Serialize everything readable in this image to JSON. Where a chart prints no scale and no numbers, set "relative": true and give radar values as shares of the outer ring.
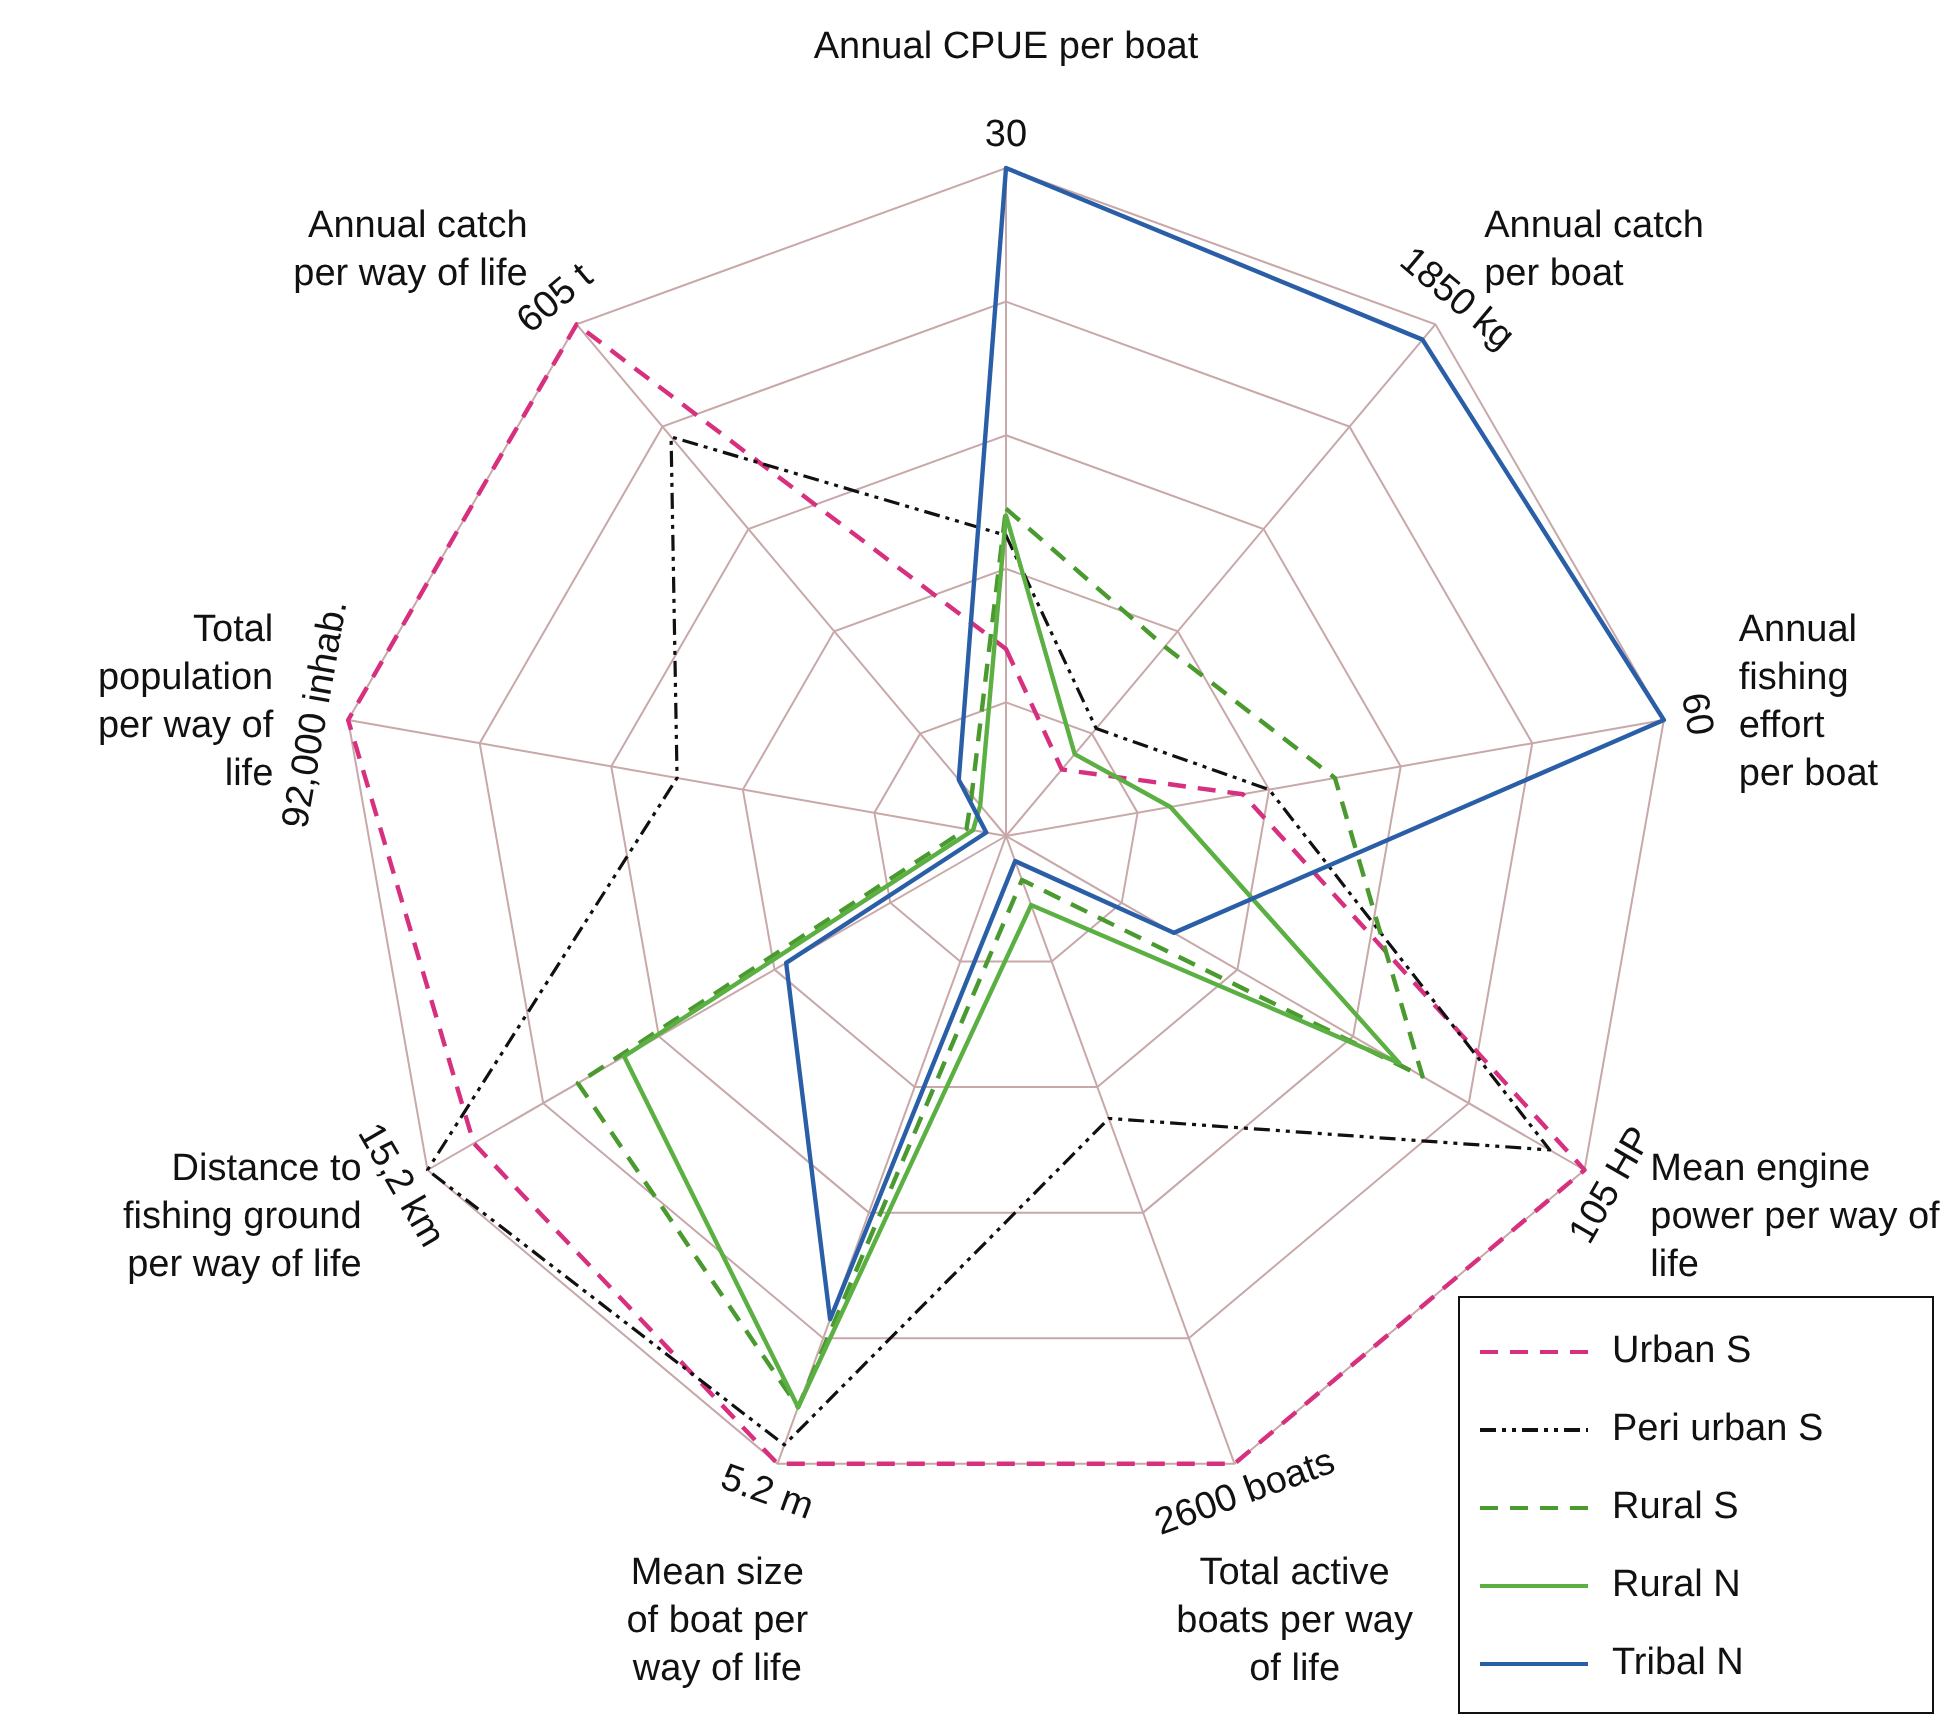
{
  "chart_data": {
    "type": "radar",
    "relative": true,
    "categories": [
      "Annual CPUE per boat",
      "Annual catch per boat",
      "Annual fishing effort per boat",
      "Mean engine power per way of life",
      "Total active boats per way of life",
      "Mean size of boat per way of life",
      "Distance to fishing ground per way of life",
      "Total population per way of life",
      "Annual catch per way of life"
    ],
    "series": [
      {
        "name": "Urban S",
        "color": "#d6307f",
        "line_style": "dashed",
        "values": [
          0.28,
          0.13,
          0.36,
          1,
          1,
          1,
          0.92,
          1,
          1
        ]
      },
      {
        "name": "Peri urban S",
        "color": "#111111",
        "line_style": "dashdot",
        "values": [
          0.45,
          0.21,
          0.4,
          0.94,
          0.45,
          0.97,
          1,
          0.5,
          0.78
        ]
      },
      {
        "name": "Rural S",
        "color": "#4a9a2f",
        "line_style": "dashed",
        "values": [
          0.49,
          0.37,
          0.5,
          0.72,
          0.07,
          0.91,
          0.74,
          0.06,
          0.08
        ]
      },
      {
        "name": "Rural N",
        "color": "#5cb043",
        "line_style": "solid",
        "values": [
          0.48,
          0.16,
          0.25,
          0.68,
          0.11,
          0.91,
          0.66,
          0.05,
          0.06
        ]
      },
      {
        "name": "Tribal N",
        "color": "#2a5fa8",
        "line_style": "solid",
        "values": [
          1,
          0.97,
          1,
          0.29,
          0.04,
          0.77,
          0.38,
          0.03,
          0.11
        ]
      }
    ],
    "annotations": [
      {
        "text": "30",
        "x": "Annual CPUE per boat"
      },
      {
        "text": "1850 kg",
        "x": "Annual catch per boat"
      },
      {
        "text": "60",
        "x": "Annual fishing effort per boat"
      },
      {
        "text": "105 HP",
        "x": "Mean engine power per way of life"
      },
      {
        "text": "2600 boats",
        "x": "Total active boats per way of life"
      },
      {
        "text": "5.2 m",
        "x": "Mean size of boat per way of life"
      },
      {
        "text": "15,2 km",
        "x": "Distance to fishing ground per way of life"
      },
      {
        "text": "92,000 inhab.",
        "x": "Total population per way of life"
      },
      {
        "text": "605 t",
        "x": "Annual catch per way of life"
      }
    ],
    "grid": true,
    "legend": "bottom right",
    "marker": "none"
  }
}
